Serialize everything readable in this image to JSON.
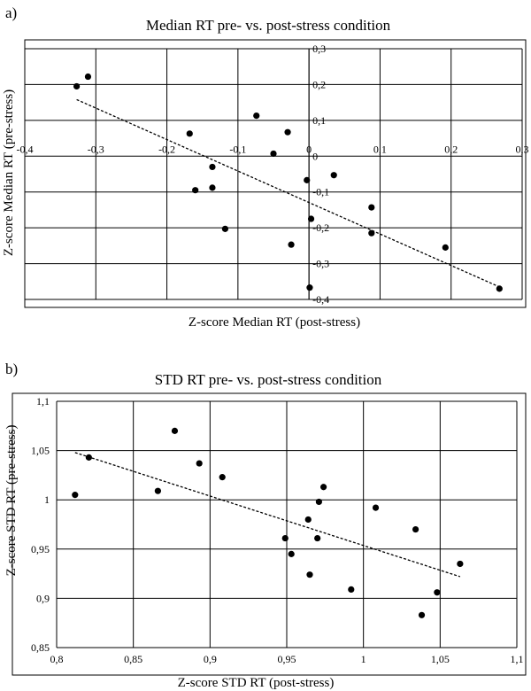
{
  "chart_data": [
    {
      "panel_label": "a)",
      "type": "scatter",
      "title": "Median RT pre- vs. post-stress condition",
      "xlabel": "Z-score Median RT (post-stress)",
      "ylabel": "Z-score Median RT (pre-stress)",
      "xlim": [
        -0.4,
        0.3
      ],
      "ylim": [
        -0.4,
        0.3
      ],
      "x_ticks": [
        -0.4,
        -0.3,
        -0.2,
        -0.1,
        0,
        0.1,
        0.2,
        0.3
      ],
      "x_tick_labels": [
        "-0,4",
        "-0,3",
        "-0,2",
        "-0,1",
        "0",
        "0,1",
        "0,2",
        "0,3"
      ],
      "y_ticks": [
        -0.4,
        -0.3,
        -0.2,
        -0.1,
        0,
        0.1,
        0.2,
        0.3
      ],
      "y_tick_labels": [
        "-0,4",
        "-0,3",
        "-0,2",
        "-0,1",
        "0",
        "0,1",
        "0,2",
        "0,3"
      ],
      "grid": true,
      "points": [
        {
          "x": -0.327,
          "y": 0.195
        },
        {
          "x": -0.311,
          "y": 0.222
        },
        {
          "x": -0.168,
          "y": 0.063
        },
        {
          "x": -0.16,
          "y": -0.095
        },
        {
          "x": -0.136,
          "y": -0.03
        },
        {
          "x": -0.136,
          "y": -0.088
        },
        {
          "x": -0.118,
          "y": -0.203
        },
        {
          "x": -0.074,
          "y": 0.113
        },
        {
          "x": -0.05,
          "y": 0.007
        },
        {
          "x": -0.03,
          "y": 0.067
        },
        {
          "x": -0.025,
          "y": -0.247
        },
        {
          "x": -0.003,
          "y": -0.067
        },
        {
          "x": 0.001,
          "y": -0.367
        },
        {
          "x": 0.003,
          "y": -0.175
        },
        {
          "x": 0.035,
          "y": -0.053
        },
        {
          "x": 0.088,
          "y": -0.143
        },
        {
          "x": 0.088,
          "y": -0.215
        },
        {
          "x": 0.192,
          "y": -0.255
        },
        {
          "x": 0.268,
          "y": -0.37
        }
      ],
      "trendline": {
        "x": [
          -0.327,
          0.268
        ],
        "y": [
          0.158,
          -0.365
        ]
      }
    },
    {
      "panel_label": "b)",
      "type": "scatter",
      "title": "STD RT pre- vs. post-stress condition",
      "xlabel": "Z-score STD RT (post-stress)",
      "ylabel": "Z-score STD RT (pre-stress)",
      "xlim": [
        0.8,
        1.1
      ],
      "ylim": [
        0.85,
        1.1
      ],
      "x_ticks": [
        0.8,
        0.85,
        0.9,
        0.95,
        1.0,
        1.05,
        1.1
      ],
      "x_tick_labels": [
        "0,8",
        "0,85",
        "0,9",
        "0,95",
        "1",
        "1,05",
        "1,1"
      ],
      "y_ticks": [
        0.85,
        0.9,
        0.95,
        1.0,
        1.05,
        1.1
      ],
      "y_tick_labels": [
        "0,85",
        "0,9",
        "0,95",
        "1",
        "1,05",
        "1,1"
      ],
      "grid": true,
      "points": [
        {
          "x": 0.812,
          "y": 1.005
        },
        {
          "x": 0.821,
          "y": 1.043
        },
        {
          "x": 0.866,
          "y": 1.009
        },
        {
          "x": 0.877,
          "y": 1.07
        },
        {
          "x": 0.893,
          "y": 1.037
        },
        {
          "x": 0.908,
          "y": 1.023
        },
        {
          "x": 0.949,
          "y": 0.961
        },
        {
          "x": 0.953,
          "y": 0.945
        },
        {
          "x": 0.964,
          "y": 0.98
        },
        {
          "x": 0.965,
          "y": 0.924
        },
        {
          "x": 0.97,
          "y": 0.961
        },
        {
          "x": 0.971,
          "y": 0.998
        },
        {
          "x": 0.974,
          "y": 1.013
        },
        {
          "x": 0.992,
          "y": 0.909
        },
        {
          "x": 1.008,
          "y": 0.992
        },
        {
          "x": 1.034,
          "y": 0.97
        },
        {
          "x": 1.038,
          "y": 0.883
        },
        {
          "x": 1.048,
          "y": 0.906
        },
        {
          "x": 1.063,
          "y": 0.935
        }
      ],
      "trendline": {
        "x": [
          0.812,
          1.063
        ],
        "y": [
          1.048,
          0.922
        ]
      }
    }
  ]
}
